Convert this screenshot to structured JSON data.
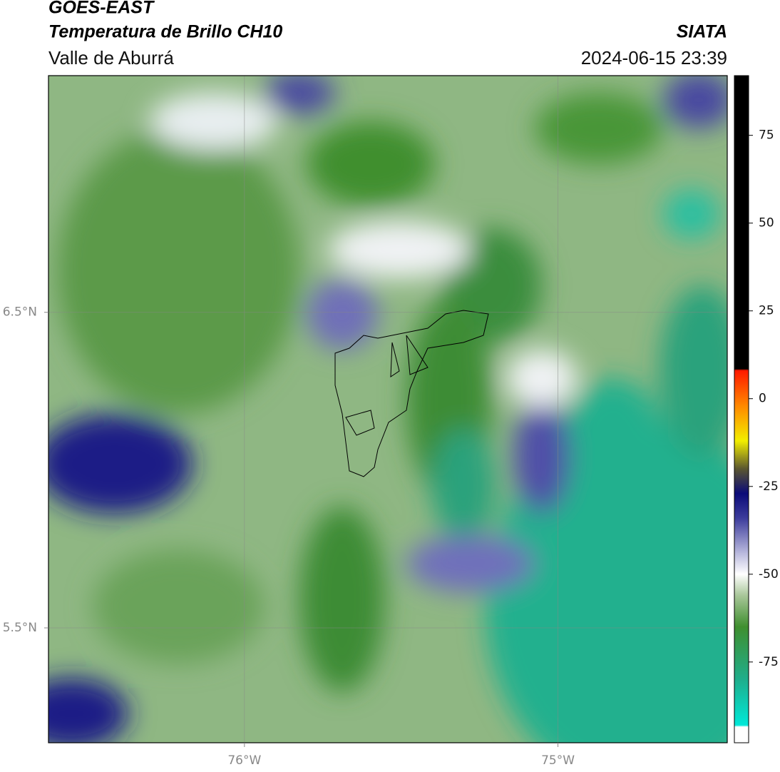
{
  "chart_data": {
    "type": "map",
    "title": "GOES-EAST",
    "subtitle": "Temperatura de Brillo CH10",
    "region": "Valle de Aburrá",
    "source": "SIATA",
    "timestamp": "2024-06-15 23:39",
    "xlim": [
      -76.625,
      -74.46
    ],
    "ylim": [
      5.136,
      7.25
    ],
    "xticks": [
      {
        "value": -76,
        "label": "76°W"
      },
      {
        "value": -75,
        "label": "75°W"
      }
    ],
    "yticks": [
      {
        "value": 6.5,
        "label": "6.5°N"
      },
      {
        "value": 5.5,
        "label": "5.5°N"
      }
    ],
    "grid": true,
    "colorbar": {
      "lim": [
        -98,
        92
      ],
      "ticks": [
        75,
        50,
        25,
        0,
        -25,
        -50,
        -75
      ],
      "stops": [
        {
          "value": -98,
          "color": "#ffffff"
        },
        {
          "value": -93.5,
          "color": "#ffffff"
        },
        {
          "value": -93,
          "color": "#00e8d8"
        },
        {
          "value": -80,
          "color": "#1fae8c"
        },
        {
          "value": -65,
          "color": "#3f8f2f"
        },
        {
          "value": -56,
          "color": "#a9c79a"
        },
        {
          "value": -50,
          "color": "#ffffff"
        },
        {
          "value": -44,
          "color": "#b9b9dd"
        },
        {
          "value": -34,
          "color": "#3c3c9c"
        },
        {
          "value": -27,
          "color": "#0b0b78"
        },
        {
          "value": -20,
          "color": "#5a5630"
        },
        {
          "value": -12,
          "color": "#f2ee00"
        },
        {
          "value": -2,
          "color": "#ff8800"
        },
        {
          "value": 8,
          "color": "#ff1a00"
        },
        {
          "value": 8.5,
          "color": "#000000"
        },
        {
          "value": 92,
          "color": "#000000"
        }
      ]
    }
  }
}
